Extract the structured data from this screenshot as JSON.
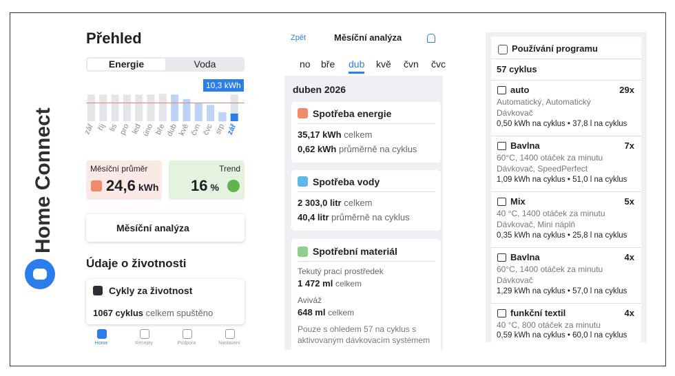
{
  "brand": "Home Connect",
  "screen1": {
    "title": "Přehled",
    "tabs": [
      "Energie",
      "Voda"
    ],
    "chart": {
      "type": "bar",
      "categories": [
        "zář",
        "říj",
        "lis",
        "pro",
        "led",
        "úno",
        "bře",
        "dub",
        "kvě",
        "čvn",
        "čvc",
        "srp",
        "zář"
      ],
      "values": [
        36,
        36,
        36,
        36,
        36,
        36,
        37,
        36,
        30,
        25,
        22,
        12,
        10.3
      ],
      "ylim": [
        0,
        40
      ],
      "average": 24.6,
      "highlight_label": "10,3 kWh"
    },
    "avg_card": {
      "label": "Měsíční průměr",
      "value": "24,6",
      "unit": "kWh"
    },
    "trend_card": {
      "label": "Trend",
      "value": "16",
      "unit": "%"
    },
    "analysis_button": "Měsíční analýza",
    "section_title": "Údaje o životnosti",
    "cycles_card": {
      "title": "Cykly za životnost",
      "value": "1067 cyklus",
      "suffix": "celkem spuštěno"
    },
    "nav": [
      "Home",
      "Recepty",
      "Podpora",
      "Nastavení"
    ]
  },
  "screen2": {
    "back": "Zpět",
    "title": "Měsíční analýza",
    "months": [
      "no",
      "bře",
      "dub",
      "kvě",
      "čvn",
      "čvc"
    ],
    "period": "duben 2026",
    "cards": [
      {
        "title": "Spotřeba energie",
        "lines": [
          [
            "35,17 kWh",
            "celkem"
          ],
          [
            "0,62 kWh",
            "průměrně na cyklus"
          ]
        ]
      },
      {
        "title": "Spotřeba vody",
        "lines": [
          [
            "2 303,0 litr",
            "celkem"
          ],
          [
            "40,4 litr",
            "průměrně na cyklus"
          ]
        ]
      }
    ],
    "material": {
      "title": "Spotřební materiál",
      "items": [
        {
          "label": "Tekutý prací prostředek",
          "value": "1 472 ml",
          "suffix": "celkem"
        },
        {
          "label": "Aviváž",
          "value": "648 ml",
          "suffix": "celkem"
        }
      ],
      "note": [
        "Pouze s ohledem 57 na cyklus s",
        "aktivovaným dávkovacím systémem"
      ]
    }
  },
  "screen3": {
    "title": "Používání programu",
    "total": "57 cyklus",
    "programs": [
      {
        "name": "auto",
        "count": "29x",
        "details": [
          "Automatický, Automatický",
          "Dávkovač"
        ],
        "usage": "0,50 kWh na cyklus • 37,8 l na cyklus"
      },
      {
        "name": "Bavlna",
        "count": "7x",
        "details": [
          "60°C, 1400 otáček za minutu",
          "Dávkovač, SpeedPerfect"
        ],
        "usage": "1,09 kWh na cyklus • 51,0 l na cyklus"
      },
      {
        "name": "Mix",
        "count": "5x",
        "details": [
          "40 °C, 1400 otáček za minutu",
          "Dávkovač, Mini náplň"
        ],
        "usage": "0,35 kWh na cyklus • 25,8 l na cyklus"
      },
      {
        "name": "Bavlna",
        "count": "4x",
        "details": [
          "60°C, 1400 otáček za minutu",
          "Dávkovač"
        ],
        "usage": "1,29 kWh na cyklus • 57,0 l na cyklus"
      },
      {
        "name": "funkční textil",
        "count": "4x",
        "details": [
          "40 °C, 800 otáček za minutu"
        ],
        "usage": "0,59 kWh na cyklus • 60,0 l na cyklus"
      }
    ]
  }
}
